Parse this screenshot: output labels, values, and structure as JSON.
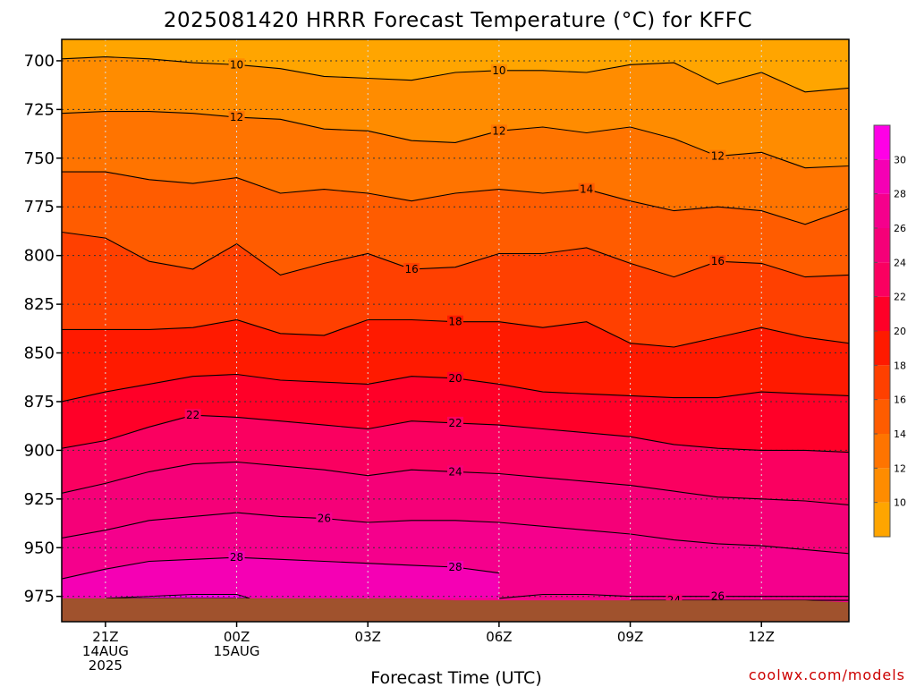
{
  "chart_data": {
    "type": "heatmap",
    "title": "2025081420 HRRR Forecast Temperature (°C) for KFFC",
    "xlabel": "Forecast Time (UTC)",
    "credit": "coolwx.com/models",
    "x_ticks": [
      {
        "hour": 0,
        "lines": [
          "21Z",
          "14AUG",
          "2025"
        ]
      },
      {
        "hour": 3,
        "lines": [
          "00Z",
          "15AUG"
        ]
      },
      {
        "hour": 6,
        "lines": [
          "03Z"
        ]
      },
      {
        "hour": 9,
        "lines": [
          "06Z"
        ]
      },
      {
        "hour": 12,
        "lines": [
          "09Z"
        ]
      },
      {
        "hour": 15,
        "lines": [
          "12Z"
        ]
      }
    ],
    "xlim": [
      -1,
      17
    ],
    "ylim": [
      988,
      689
    ],
    "y_ticks": [
      700,
      725,
      750,
      775,
      800,
      825,
      850,
      875,
      900,
      925,
      950,
      975
    ],
    "grid": true,
    "colorbar": {
      "ticks": [
        10,
        12,
        14,
        16,
        18,
        20,
        22,
        24,
        26,
        28,
        30
      ],
      "bins": [
        {
          "lo": 8,
          "hi": 10,
          "color": "#ffa500"
        },
        {
          "lo": 10,
          "hi": 12,
          "color": "#ff8c00"
        },
        {
          "lo": 12,
          "hi": 14,
          "color": "#ff7400"
        },
        {
          "lo": 14,
          "hi": 16,
          "color": "#ff5c00"
        },
        {
          "lo": 16,
          "hi": 18,
          "color": "#ff4000"
        },
        {
          "lo": 18,
          "hi": 20,
          "color": "#ff1a00"
        },
        {
          "lo": 20,
          "hi": 22,
          "color": "#ff0028"
        },
        {
          "lo": 22,
          "hi": 24,
          "color": "#fa0060"
        },
        {
          "lo": 24,
          "hi": 26,
          "color": "#f50078"
        },
        {
          "lo": 26,
          "hi": 28,
          "color": "#f5008c"
        },
        {
          "lo": 28,
          "hi": 30,
          "color": "#f500b4"
        },
        {
          "lo": 30,
          "hi": 32,
          "color": "#ff00e6"
        }
      ]
    },
    "ground": {
      "color": "#a0522d",
      "pressure": [
        976,
        976,
        976,
        976,
        976,
        976,
        976,
        976,
        976,
        977,
        977,
        977,
        977,
        977,
        977,
        977,
        977,
        977,
        978
      ]
    },
    "contours": [
      {
        "level": 10,
        "pressure": [
          699,
          698,
          699,
          701,
          702,
          704,
          708,
          709,
          710,
          706,
          705,
          705,
          706,
          702,
          701,
          712,
          706,
          716,
          714,
          711
        ],
        "labels": [
          {
            "hour": 3,
            "text": "10"
          },
          {
            "hour": 9,
            "text": "10"
          }
        ]
      },
      {
        "level": 12,
        "pressure": [
          727,
          726,
          726,
          727,
          729,
          730,
          735,
          736,
          741,
          742,
          736,
          734,
          737,
          734,
          740,
          749,
          747,
          755,
          754,
          748
        ],
        "labels": [
          {
            "hour": 3,
            "text": "12"
          },
          {
            "hour": 9,
            "text": "12"
          },
          {
            "hour": 14,
            "text": "12"
          }
        ]
      },
      {
        "level": 14,
        "pressure": [
          757,
          757,
          761,
          763,
          760,
          768,
          766,
          768,
          772,
          768,
          766,
          768,
          766,
          772,
          777,
          775,
          777,
          784,
          776
        ],
        "labels": [
          {
            "hour": 11,
            "text": "14"
          }
        ]
      },
      {
        "level": 16,
        "pressure": [
          788,
          791,
          803,
          807,
          794,
          810,
          804,
          799,
          807,
          806,
          799,
          799,
          796,
          804,
          811,
          803,
          804,
          811,
          810
        ],
        "labels": [
          {
            "hour": 7,
            "text": "16"
          },
          {
            "hour": 14,
            "text": "16"
          }
        ]
      },
      {
        "level": 18,
        "pressure": [
          838,
          838,
          838,
          837,
          833,
          840,
          841,
          833,
          833,
          834,
          834,
          837,
          834,
          845,
          847,
          842,
          837,
          842,
          845
        ],
        "labels": [
          {
            "hour": 8,
            "text": "18"
          }
        ]
      },
      {
        "level": 20,
        "pressure": [
          875,
          870,
          866,
          862,
          861,
          864,
          865,
          866,
          862,
          863,
          866,
          870,
          871,
          872,
          873,
          873,
          870,
          871,
          872
        ],
        "labels": [
          {
            "hour": 8,
            "text": "20"
          }
        ]
      },
      {
        "level": 22,
        "pressure": [
          899,
          895,
          888,
          882,
          883,
          885,
          887,
          889,
          885,
          886,
          887,
          889,
          891,
          893,
          897,
          899,
          900,
          900,
          901
        ],
        "labels": [
          {
            "hour": 2,
            "text": "22"
          },
          {
            "hour": 8,
            "text": "22"
          }
        ]
      },
      {
        "level": 24,
        "pressure": [
          922,
          917,
          911,
          907,
          906,
          908,
          910,
          913,
          910,
          911,
          912,
          914,
          916,
          918,
          921,
          924,
          925,
          926,
          928
        ],
        "labels": [
          {
            "hour": 8,
            "text": "24"
          }
        ]
      },
      {
        "level": 26,
        "pressure": [
          945,
          941,
          936,
          934,
          932,
          934,
          935,
          937,
          936,
          936,
          937,
          939,
          941,
          943,
          946,
          948,
          949,
          951,
          953
        ],
        "labels": [
          {
            "hour": 5,
            "text": "26"
          }
        ]
      },
      {
        "level": 28,
        "pressure": [
          966,
          961,
          957,
          956,
          955,
          956,
          957,
          958,
          959,
          960,
          963
        ],
        "hours_end": 9,
        "labels": [
          {
            "hour": 3,
            "text": "28"
          },
          {
            "hour": 8,
            "text": "28"
          }
        ]
      },
      {
        "level": 26,
        "segment": "lower",
        "pressure": [
          976,
          974,
          974,
          975,
          975,
          975,
          975,
          975,
          975,
          975,
          974,
          974,
          975,
          974,
          974,
          974,
          976
        ],
        "hours_start": 9,
        "labels": [
          {
            "hour": 14,
            "text": "26"
          }
        ]
      },
      {
        "level": 24,
        "segment": "lower",
        "pressure": [
          977,
          977,
          977,
          977,
          977,
          977,
          977
        ],
        "hours_start": 12,
        "labels": [
          {
            "hour": 13,
            "text": "24"
          }
        ]
      }
    ]
  }
}
